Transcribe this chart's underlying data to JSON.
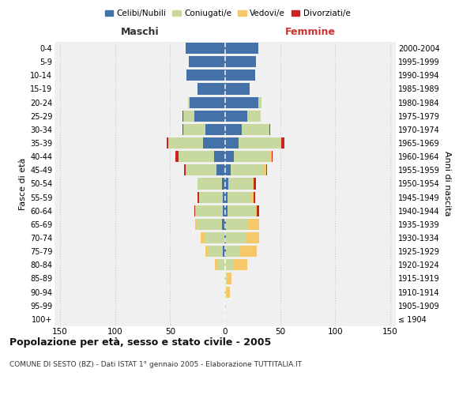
{
  "age_groups": [
    "100+",
    "95-99",
    "90-94",
    "85-89",
    "80-84",
    "75-79",
    "70-74",
    "65-69",
    "60-64",
    "55-59",
    "50-54",
    "45-49",
    "40-44",
    "35-39",
    "30-34",
    "25-29",
    "20-24",
    "15-19",
    "10-14",
    "5-9",
    "0-4"
  ],
  "birth_years": [
    "≤ 1904",
    "1905-1909",
    "1910-1914",
    "1915-1919",
    "1920-1924",
    "1925-1929",
    "1930-1934",
    "1935-1939",
    "1940-1944",
    "1945-1949",
    "1950-1954",
    "1955-1959",
    "1960-1964",
    "1965-1969",
    "1970-1974",
    "1975-1979",
    "1980-1984",
    "1985-1989",
    "1990-1994",
    "1995-1999",
    "2000-2004"
  ],
  "males": {
    "celibi": [
      0,
      0,
      0,
      0,
      0,
      2,
      1,
      3,
      2,
      2,
      3,
      8,
      10,
      20,
      18,
      28,
      32,
      25,
      35,
      33,
      36
    ],
    "coniugati": [
      0,
      0,
      1,
      1,
      7,
      14,
      18,
      22,
      25,
      22,
      22,
      28,
      32,
      32,
      20,
      10,
      2,
      0,
      0,
      0,
      0
    ],
    "vedovi": [
      0,
      0,
      0,
      0,
      2,
      2,
      3,
      2,
      0,
      0,
      0,
      0,
      0,
      0,
      0,
      0,
      0,
      0,
      0,
      0,
      0
    ],
    "divorziati": [
      0,
      0,
      0,
      0,
      0,
      0,
      0,
      0,
      1,
      1,
      0,
      1,
      3,
      1,
      1,
      1,
      0,
      0,
      0,
      0,
      0
    ]
  },
  "females": {
    "nubili": [
      0,
      0,
      0,
      0,
      0,
      1,
      1,
      1,
      2,
      2,
      3,
      5,
      8,
      12,
      15,
      20,
      30,
      22,
      27,
      28,
      30
    ],
    "coniugate": [
      0,
      0,
      1,
      2,
      8,
      12,
      18,
      20,
      25,
      22,
      22,
      30,
      33,
      38,
      25,
      12,
      3,
      0,
      0,
      0,
      0
    ],
    "vedove": [
      0,
      1,
      3,
      4,
      12,
      16,
      12,
      10,
      2,
      2,
      1,
      2,
      1,
      1,
      0,
      0,
      0,
      0,
      0,
      0,
      0
    ],
    "divorziate": [
      0,
      0,
      0,
      0,
      0,
      0,
      0,
      0,
      2,
      1,
      2,
      1,
      1,
      3,
      1,
      0,
      0,
      0,
      0,
      0,
      0
    ]
  },
  "color_celibi": "#4472A8",
  "color_coniugati": "#C8D9A0",
  "color_vedovi": "#F5C96A",
  "color_divorziati": "#CC2222",
  "title": "Popolazione per età, sesso e stato civile - 2005",
  "subtitle": "COMUNE DI SESTO (BZ) - Dati ISTAT 1° gennaio 2005 - Elaborazione TUTTITALIA.IT",
  "xlabel_left": "Maschi",
  "xlabel_right": "Femmine",
  "ylabel_left": "Fasce di età",
  "ylabel_right": "Anni di nascita",
  "xlim": 155,
  "background_color": "#ffffff",
  "plot_bg": "#f0f0f0",
  "grid_color": "#cccccc",
  "legend_labels": [
    "Celibi/Nubili",
    "Coniugati/e",
    "Vedovi/e",
    "Divorziati/e"
  ]
}
